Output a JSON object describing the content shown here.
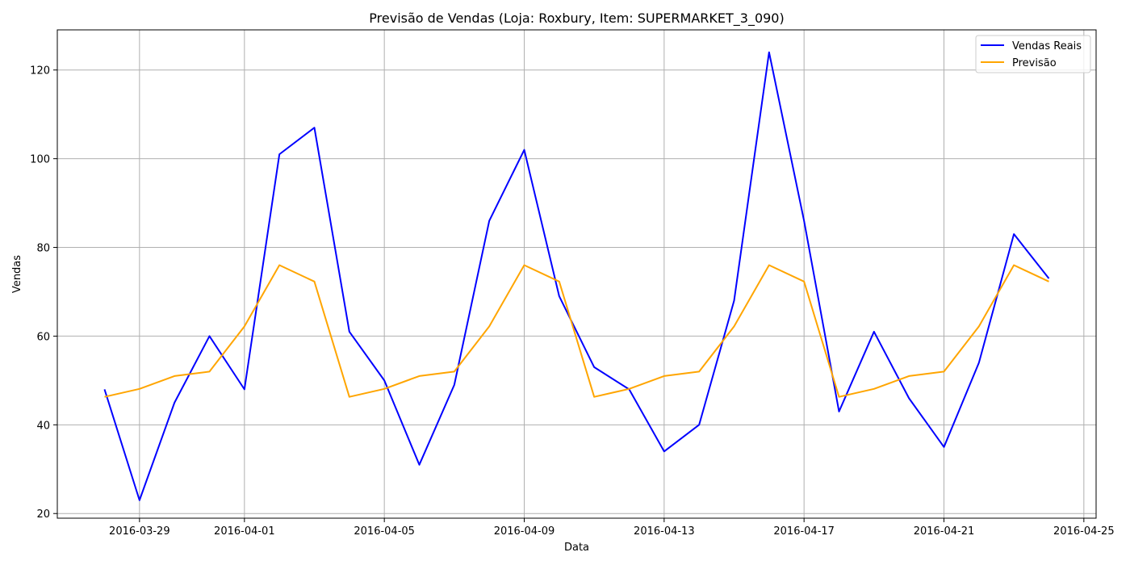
{
  "chart_data": {
    "type": "line",
    "title": "Previsão de Vendas (Loja: Roxbury, Item: SUPERMARKET_3_090)",
    "xlabel": "Data",
    "ylabel": "Vendas",
    "x": [
      "2016-03-28",
      "2016-03-29",
      "2016-03-30",
      "2016-03-31",
      "2016-04-01",
      "2016-04-02",
      "2016-04-03",
      "2016-04-04",
      "2016-04-05",
      "2016-04-06",
      "2016-04-07",
      "2016-04-08",
      "2016-04-09",
      "2016-04-10",
      "2016-04-11",
      "2016-04-12",
      "2016-04-13",
      "2016-04-14",
      "2016-04-15",
      "2016-04-16",
      "2016-04-17",
      "2016-04-18",
      "2016-04-19",
      "2016-04-20",
      "2016-04-21",
      "2016-04-22",
      "2016-04-23",
      "2016-04-24"
    ],
    "series": [
      {
        "name": "Vendas Reais",
        "color": "#0000ff",
        "values": [
          48,
          23,
          45,
          60,
          48,
          101,
          107,
          61,
          50,
          31,
          49,
          86,
          102,
          69,
          53,
          48,
          34,
          40,
          68,
          124,
          86,
          43,
          61,
          46,
          35,
          54,
          83,
          73
        ]
      },
      {
        "name": "Previsão",
        "color": "#ffa500",
        "values": [
          46.3,
          48.1,
          51,
          52,
          62.2,
          76,
          72.3,
          46.3,
          48.1,
          51,
          52,
          62.2,
          76,
          72.3,
          46.3,
          48.1,
          51,
          52,
          62.2,
          76,
          72.3,
          46.3,
          48.1,
          51,
          52,
          62.2,
          76,
          72.3
        ]
      }
    ],
    "x_ticks": [
      "2016-03-29",
      "2016-04-01",
      "2016-04-05",
      "2016-04-09",
      "2016-04-13",
      "2016-04-17",
      "2016-04-21",
      "2016-04-25"
    ],
    "y_ticks": [
      20,
      40,
      60,
      80,
      100,
      120
    ],
    "xlim": [
      "2016-03-26.65",
      "2016-04-25.35"
    ],
    "ylim": [
      18.95,
      129.05
    ],
    "grid": true,
    "legend_position": "top-right"
  }
}
